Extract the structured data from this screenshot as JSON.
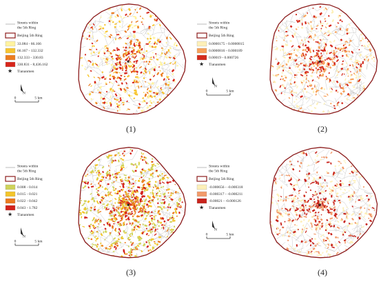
{
  "panels": [
    {
      "caption": "(1)",
      "legend": {
        "streets": [
          "Streets within",
          "the 5th Ring"
        ],
        "ring": "Beijing 5th Ring",
        "classes": [
          {
            "label": "33.084 - 66.166",
            "color": "#fff3a0"
          },
          {
            "label": "66.167 - 132.332",
            "color": "#f7c531"
          },
          {
            "label": "132.333 - 330.83",
            "color": "#ec7c1f"
          },
          {
            "label": "330.831 - 8,436.162",
            "color": "#d7261b"
          }
        ],
        "landmark": "Tiananmen"
      },
      "scale": {
        "zero": "0",
        "distance": "5 km"
      },
      "north": "N"
    },
    {
      "caption": "(2)",
      "legend": {
        "streets": [
          "Streets within",
          "the 5th Ring"
        ],
        "ring": "Beijing 5th Ring",
        "classes": [
          {
            "label": "0.0000175 - 0.0000815",
            "color": "#fdf0b8"
          },
          {
            "label": "0.0000816 - 0.000189",
            "color": "#f7a15a"
          },
          {
            "label": "0.00019 - 0.000726",
            "color": "#d42a1c"
          }
        ],
        "landmark": "Tiananmen"
      },
      "scale": {
        "zero": "0",
        "distance": "5 km"
      },
      "north": "N"
    },
    {
      "caption": "(3)",
      "legend": {
        "streets": [
          "Streets within",
          "the 5th Ring"
        ],
        "ring": "Beijing 5th Ring",
        "classes": [
          {
            "label": "0.008 - 0.014",
            "color": "#cfd35a"
          },
          {
            "label": "0.015 - 0.021",
            "color": "#f3c52a"
          },
          {
            "label": "0.022 - 0.042",
            "color": "#ec7a1e"
          },
          {
            "label": "0.043 - 1.782",
            "color": "#d3211b"
          }
        ],
        "landmark": "Tiananmen"
      },
      "scale": {
        "zero": "0",
        "distance": "5 km"
      },
      "north": "N"
    },
    {
      "caption": "(4)",
      "legend": {
        "streets": [
          "Streets within",
          "the 5th Ring"
        ],
        "ring": "Beijing 5th Ring",
        "classes": [
          {
            "label": "-0.000656 - -0.000318",
            "color": "#fdf0b8"
          },
          {
            "label": "-0.000317 - -0.000211",
            "color": "#f29a6a"
          },
          {
            "label": "-0.00021 - -0.000126",
            "color": "#c8231b"
          }
        ],
        "landmark": "Tiananmen"
      },
      "scale": {
        "zero": "0",
        "distance": "5 km"
      },
      "north": "N"
    }
  ]
}
